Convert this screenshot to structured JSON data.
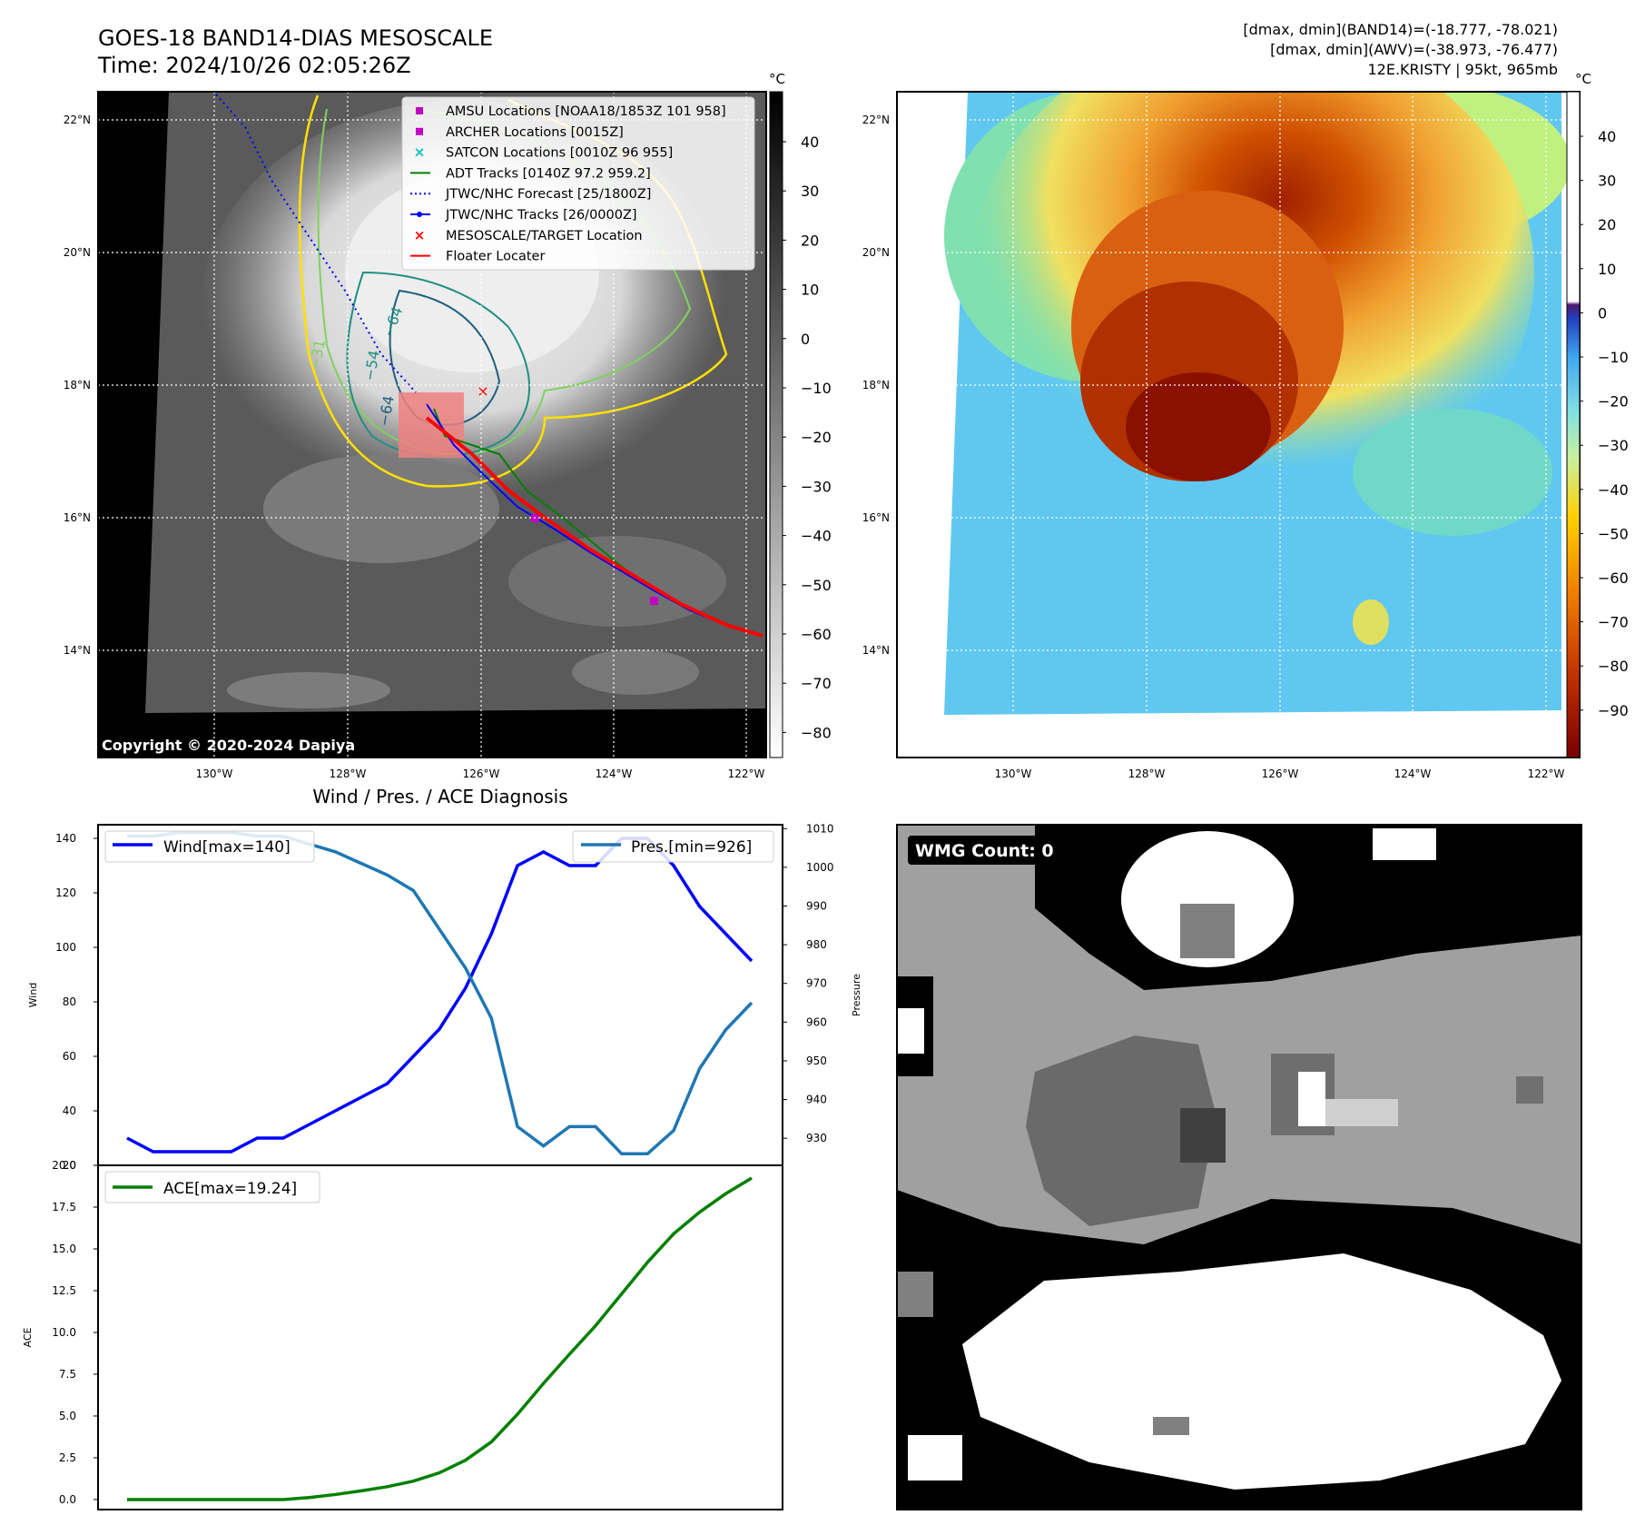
{
  "header": {
    "title_line1": "GOES-18 BAND14-DIAS MESOSCALE",
    "title_line2": "Time: 2024/10/26 02:05:26Z",
    "info_line1": "[dmax, dmin](BAND14)=(-18.777, -78.021)",
    "info_line2": "[dmax, dmin](AWV)=(-38.973, -76.477)",
    "info_line3": "12E.KRISTY | 95kt, 965mb"
  },
  "map_ir": {
    "lat_labels": [
      "22°N",
      "20°N",
      "18°N",
      "16°N",
      "14°N"
    ],
    "lon_labels": [
      "130°W",
      "128°W",
      "126°W",
      "124°W",
      "122°W"
    ],
    "copyright": "Copyright © 2020-2024 Dapiya",
    "colorbar_unit": "°C",
    "colorbar_ticks": [
      "40",
      "30",
      "20",
      "10",
      "0",
      "−10",
      "−20",
      "−30",
      "−40",
      "−50",
      "−60",
      "−70",
      "−80"
    ],
    "contour_labels": [
      "−64",
      "−54",
      "−64",
      "−31"
    ],
    "legend": [
      {
        "label": "AMSU Locations [NOAA18/1853Z 101 958]",
        "symbol": "square",
        "color": "#c000c0"
      },
      {
        "label": "ARCHER Locations [0015Z]",
        "symbol": "square",
        "color": "#c000c0"
      },
      {
        "label": "SATCON Locations [0010Z 96 955]",
        "symbol": "x",
        "color": "#00bfbf"
      },
      {
        "label": "ADT Tracks [0140Z 97.2 959.2]",
        "symbol": "line",
        "color": "#008000"
      },
      {
        "label": "JTWC/NHC Forecast [25/1800Z]",
        "symbol": "dotted",
        "color": "#0000ff"
      },
      {
        "label": "JTWC/NHC Tracks [26/0000Z]",
        "symbol": "line-dot",
        "color": "#0000ff"
      },
      {
        "label": "MESOSCALE/TARGET Location",
        "symbol": "x",
        "color": "#ff0000"
      },
      {
        "label": "Floater Locater",
        "symbol": "line",
        "color": "#ff0000"
      }
    ]
  },
  "map_wv": {
    "lat_labels": [
      "22°N",
      "20°N",
      "18°N",
      "16°N",
      "14°N"
    ],
    "lon_labels": [
      "130°W",
      "128°W",
      "126°W",
      "124°W",
      "122°W"
    ],
    "colorbar_unit": "°C",
    "colorbar_ticks": [
      "40",
      "30",
      "20",
      "10",
      "0",
      "−10",
      "−20",
      "−30",
      "−40",
      "−50",
      "−60",
      "−70",
      "−80",
      "−90"
    ]
  },
  "wmg": {
    "label": "WMG Count: 0"
  },
  "colors": {
    "wind": "#0000ff",
    "pressure": "#1f77b4",
    "ace": "#008000"
  },
  "chart_data": [
    {
      "type": "line",
      "title": "Wind / Pres. / ACE Diagnosis",
      "ylabel": "Wind",
      "y2label": "Pressure",
      "ylim": [
        20,
        145
      ],
      "y2lim": [
        923,
        1011
      ],
      "yticks": [
        20,
        40,
        60,
        80,
        100,
        120,
        140
      ],
      "y2ticks": [
        930,
        940,
        950,
        960,
        970,
        980,
        990,
        1000,
        1010
      ],
      "series": [
        {
          "name": "Wind[max=140]",
          "axis": "left",
          "values": [
            30,
            25,
            25,
            25,
            25,
            30,
            30,
            35,
            40,
            45,
            50,
            60,
            70,
            85,
            105,
            130,
            135,
            130,
            130,
            140,
            140,
            130,
            115,
            105,
            95
          ]
        },
        {
          "name": "Pres.[min=926]",
          "axis": "right",
          "values": [
            1008,
            1008,
            1009,
            1009,
            1009,
            1008,
            1008,
            1006,
            1004,
            1001,
            998,
            994,
            984,
            974,
            961,
            933,
            928,
            933,
            933,
            926,
            926,
            932,
            948,
            958,
            965
          ]
        }
      ]
    },
    {
      "type": "line",
      "ylabel": "ACE",
      "ylim": [
        -0.6,
        20
      ],
      "yticks": [
        0.0,
        2.5,
        5.0,
        7.5,
        10.0,
        12.5,
        15.0,
        17.5,
        20.0
      ],
      "series": [
        {
          "name": "ACE[max=19.24]",
          "values": [
            0,
            0,
            0,
            0,
            0,
            0,
            0,
            0.12,
            0.3,
            0.52,
            0.77,
            1.1,
            1.6,
            2.35,
            3.45,
            5.1,
            6.95,
            8.7,
            10.4,
            12.3,
            14.2,
            15.9,
            17.2,
            18.3,
            19.24
          ]
        }
      ]
    }
  ]
}
